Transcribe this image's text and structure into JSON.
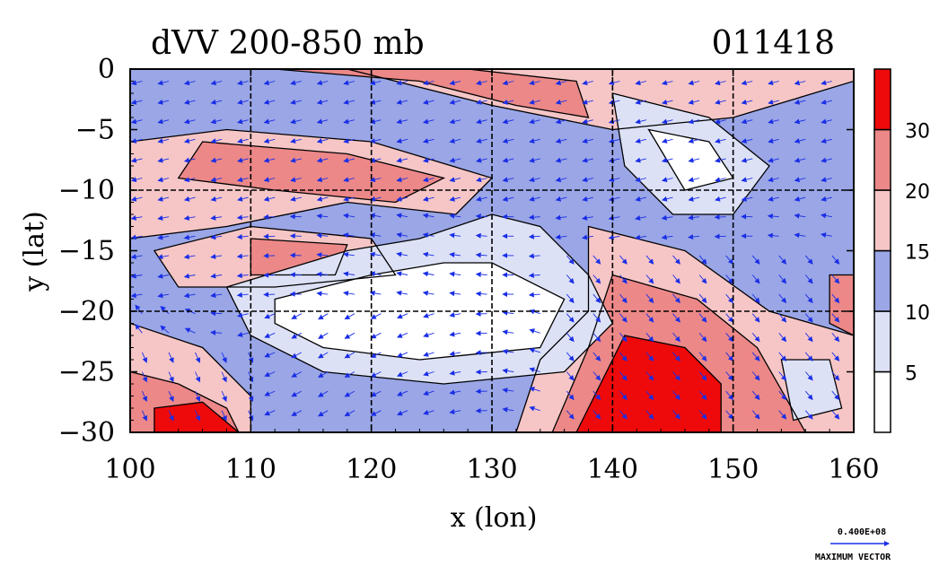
{
  "chart_data": {
    "type": "heatmap",
    "title": "dVV 200-850 mb",
    "subtitle": "011418",
    "xlabel": "x (lon)",
    "ylabel": "y (lat)",
    "xlim": [
      100,
      160
    ],
    "ylim": [
      -30,
      0
    ],
    "x_ticks": [
      "100",
      "110",
      "120",
      "130",
      "140",
      "150",
      "160"
    ],
    "y_ticks": [
      "0",
      "−5",
      "−10",
      "−15",
      "−20",
      "−25",
      "−30"
    ],
    "grid_lon": [
      110,
      120,
      130,
      140,
      150
    ],
    "grid_lat": [
      -10,
      -20
    ],
    "colorbar": {
      "labels": [
        "5",
        "10",
        "15",
        "20",
        "30"
      ],
      "levels": [
        {
          "min": 0,
          "max": 5,
          "color": "#ffffff"
        },
        {
          "min": 5,
          "max": 10,
          "color": "#dde1f6"
        },
        {
          "min": 10,
          "max": 15,
          "color": "#9aa6e6"
        },
        {
          "min": 15,
          "max": 20,
          "color": "#f6c6c6"
        },
        {
          "min": 20,
          "max": 30,
          "color": "#ec8888"
        },
        {
          "min": 30,
          "max": 40,
          "color": "#ee0a0a"
        }
      ]
    },
    "regions": [
      {
        "level": 2,
        "points": [
          [
            100,
            0
          ],
          [
            160,
            0
          ],
          [
            160,
            -30
          ],
          [
            100,
            -30
          ]
        ]
      },
      {
        "level": 3,
        "points": [
          [
            100,
            0
          ],
          [
            118,
            0
          ],
          [
            130,
            -3
          ],
          [
            140,
            -5
          ],
          [
            150,
            -4
          ],
          [
            160,
            -1
          ],
          [
            160,
            0
          ]
        ]
      },
      {
        "level": 4,
        "points": [
          [
            112,
            0
          ],
          [
            124,
            -1
          ],
          [
            132,
            -3
          ],
          [
            138,
            -4
          ],
          [
            137,
            -1
          ],
          [
            128,
            0
          ]
        ]
      },
      {
        "level": 3,
        "points": [
          [
            100,
            -6
          ],
          [
            108,
            -5
          ],
          [
            120,
            -6
          ],
          [
            130,
            -9
          ],
          [
            127,
            -12
          ],
          [
            118,
            -11
          ],
          [
            108,
            -13
          ],
          [
            100,
            -14
          ]
        ]
      },
      {
        "level": 4,
        "points": [
          [
            106,
            -6
          ],
          [
            118,
            -7
          ],
          [
            126,
            -9
          ],
          [
            122,
            -11
          ],
          [
            112,
            -10
          ],
          [
            104,
            -9
          ]
        ]
      },
      {
        "level": 3,
        "points": [
          [
            102,
            -15
          ],
          [
            110,
            -13
          ],
          [
            120,
            -14
          ],
          [
            122,
            -17
          ],
          [
            112,
            -18
          ],
          [
            104,
            -18
          ]
        ]
      },
      {
        "level": 4,
        "points": [
          [
            110,
            -14
          ],
          [
            118,
            -14.5
          ],
          [
            117,
            -17
          ],
          [
            110,
            -17
          ]
        ]
      },
      {
        "level": 3,
        "points": [
          [
            138,
            -13
          ],
          [
            146,
            -15
          ],
          [
            153,
            -20
          ],
          [
            160,
            -22
          ],
          [
            160,
            -30
          ],
          [
            132,
            -30
          ],
          [
            134,
            -24
          ],
          [
            138,
            -20
          ]
        ]
      },
      {
        "level": 4,
        "points": [
          [
            140,
            -17
          ],
          [
            147,
            -19
          ],
          [
            152,
            -23
          ],
          [
            156,
            -30
          ],
          [
            135,
            -30
          ],
          [
            138,
            -23
          ]
        ]
      },
      {
        "level": 5,
        "points": [
          [
            141,
            -22
          ],
          [
            146,
            -23
          ],
          [
            149,
            -26
          ],
          [
            149,
            -30
          ],
          [
            137,
            -30
          ],
          [
            139,
            -26
          ]
        ]
      },
      {
        "level": 3,
        "points": [
          [
            100,
            -21
          ],
          [
            106,
            -23
          ],
          [
            110,
            -27
          ],
          [
            110,
            -30
          ],
          [
            100,
            -30
          ]
        ]
      },
      {
        "level": 4,
        "points": [
          [
            100,
            -25
          ],
          [
            104,
            -26
          ],
          [
            108,
            -28
          ],
          [
            109,
            -30
          ],
          [
            100,
            -30
          ]
        ]
      },
      {
        "level": 5,
        "points": [
          [
            102,
            -28
          ],
          [
            106,
            -27.5
          ],
          [
            109,
            -30
          ],
          [
            102,
            -30
          ]
        ]
      },
      {
        "level": 1,
        "points": [
          [
            108,
            -18
          ],
          [
            118,
            -15
          ],
          [
            124,
            -14
          ],
          [
            130,
            -12
          ],
          [
            134,
            -13
          ],
          [
            138,
            -17
          ],
          [
            140,
            -21
          ],
          [
            136,
            -25
          ],
          [
            126,
            -26
          ],
          [
            116,
            -25
          ],
          [
            110,
            -22
          ]
        ]
      },
      {
        "level": 0,
        "points": [
          [
            112,
            -19
          ],
          [
            120,
            -17
          ],
          [
            126,
            -16
          ],
          [
            130,
            -16
          ],
          [
            136,
            -19
          ],
          [
            134,
            -23
          ],
          [
            124,
            -24
          ],
          [
            116,
            -23
          ],
          [
            112,
            -21
          ]
        ]
      },
      {
        "level": 1,
        "points": [
          [
            140,
            -2
          ],
          [
            148,
            -4
          ],
          [
            153,
            -8
          ],
          [
            150,
            -12
          ],
          [
            145,
            -12
          ],
          [
            141,
            -8
          ]
        ]
      },
      {
        "level": 0,
        "points": [
          [
            143,
            -5
          ],
          [
            148,
            -6
          ],
          [
            150,
            -9
          ],
          [
            146,
            -10
          ]
        ]
      },
      {
        "level": 1,
        "points": [
          [
            154,
            -24
          ],
          [
            158,
            -24
          ],
          [
            159,
            -28
          ],
          [
            155,
            -29
          ]
        ]
      },
      {
        "level": 4,
        "points": [
          [
            158,
            -17
          ],
          [
            160,
            -17
          ],
          [
            160,
            -22
          ],
          [
            158,
            -21
          ]
        ]
      }
    ],
    "vector_scale": {
      "label": "0.400E+08",
      "caption": "MAXIMUM VECTOR"
    }
  }
}
